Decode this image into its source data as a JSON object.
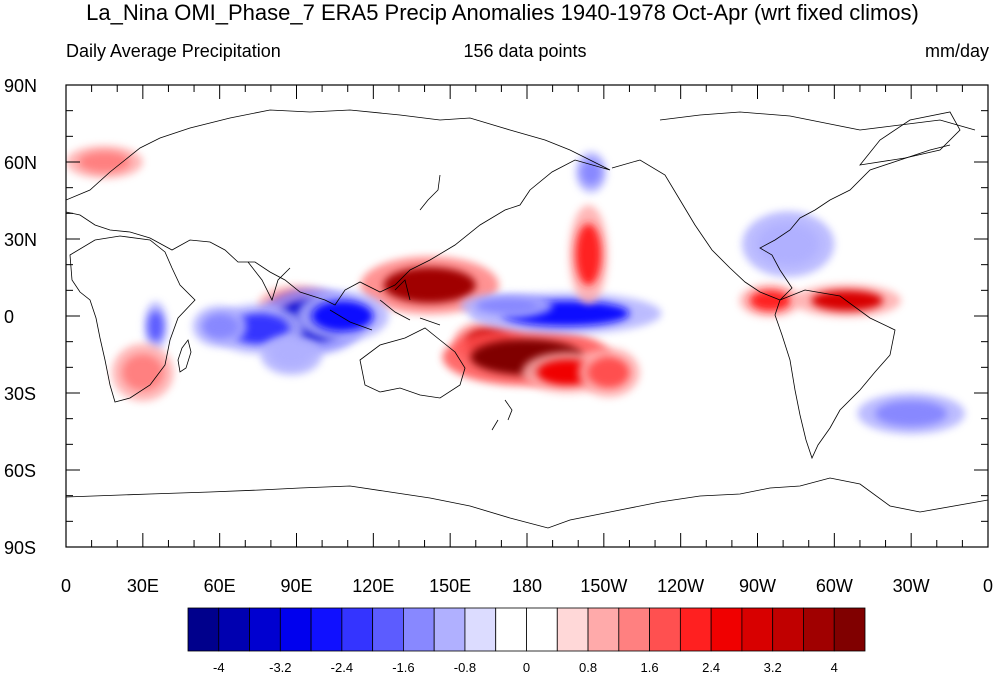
{
  "title": "La_Nina OMI_Phase_7 ERA5 Precip Anomalies 1940-1978 Oct-Apr (wrt fixed climos)",
  "subtitle_left": "Daily Average Precipitation",
  "subtitle_center": "156 data points",
  "subtitle_right": "mm/day",
  "lat_labels": [
    "90N",
    "60N",
    "30N",
    "0",
    "30S",
    "60S",
    "90S"
  ],
  "lon_labels": [
    "0",
    "30E",
    "60E",
    "90E",
    "120E",
    "150E",
    "180",
    "150W",
    "120W",
    "90W",
    "60W",
    "30W",
    "0"
  ],
  "colorbar": {
    "colors": [
      "#00008c",
      "#0000b0",
      "#0000d0",
      "#0000ee",
      "#1010ff",
      "#3434ff",
      "#5c5cff",
      "#8888ff",
      "#b0b0ff",
      "#dcdcff",
      "#ffffff",
      "#ffffff",
      "#ffd8d8",
      "#ffaaaa",
      "#ff8080",
      "#ff5050",
      "#ff2020",
      "#f00000",
      "#d80000",
      "#c00000",
      "#a00000",
      "#800000"
    ],
    "labels": [
      "-4",
      "-3.2",
      "-2.4",
      "-1.6",
      "-0.8",
      "0",
      "0.8",
      "1.6",
      "2.4",
      "3.2",
      "4"
    ]
  },
  "anomaly_regions": [
    {
      "lon": 142,
      "lat": 12,
      "rx": 18,
      "ry": 7,
      "value": 3.6
    },
    {
      "lon": 165,
      "lat": -10,
      "rx": 9,
      "ry": 5,
      "value": 3.4
    },
    {
      "lon": 180,
      "lat": -16,
      "rx": 22,
      "ry": 7,
      "value": 4.0
    },
    {
      "lon": 196,
      "lat": -22,
      "rx": 12,
      "ry": 5,
      "value": 2.4
    },
    {
      "lon": 212,
      "lat": -22,
      "rx": 8,
      "ry": 6,
      "value": 1.6
    },
    {
      "lon": 90,
      "lat": 4,
      "rx": 10,
      "ry": 5,
      "value": 1.6
    },
    {
      "lon": 96,
      "lat": -2,
      "rx": 14,
      "ry": 8,
      "value": -3.6
    },
    {
      "lon": 108,
      "lat": 0,
      "rx": 12,
      "ry": 6,
      "value": -2.8
    },
    {
      "lon": 75,
      "lat": -5,
      "rx": 12,
      "ry": 6,
      "value": -2.2
    },
    {
      "lon": 60,
      "lat": -4,
      "rx": 7,
      "ry": 5,
      "value": -1.6
    },
    {
      "lon": 35,
      "lat": -4,
      "rx": 3,
      "ry": 6,
      "value": -1.8
    },
    {
      "lon": 195,
      "lat": 1,
      "rx": 25,
      "ry": 5,
      "value": -2.6
    },
    {
      "lon": 172,
      "lat": 4,
      "rx": 12,
      "ry": 3,
      "value": -1.6
    },
    {
      "lon": 204,
      "lat": 24,
      "rx": 5,
      "ry": 12,
      "value": 2.0
    },
    {
      "lon": 205,
      "lat": 56,
      "rx": 4,
      "ry": 5,
      "value": -1.6
    },
    {
      "lon": 275,
      "lat": 6,
      "rx": 8,
      "ry": 4,
      "value": 2.0
    },
    {
      "lon": 305,
      "lat": 6,
      "rx": 14,
      "ry": 4,
      "value": 2.8
    },
    {
      "lon": 330,
      "lat": -38,
      "rx": 14,
      "ry": 5,
      "value": -1.6
    },
    {
      "lon": 282,
      "lat": 28,
      "rx": 12,
      "ry": 8,
      "value": -1.0
    },
    {
      "lon": 30,
      "lat": -22,
      "rx": 8,
      "ry": 7,
      "value": 1.2
    },
    {
      "lon": 15,
      "lat": 60,
      "rx": 10,
      "ry": 4,
      "value": 1.2
    },
    {
      "lon": 88,
      "lat": -15,
      "rx": 8,
      "ry": 5,
      "value": -1.2
    }
  ]
}
